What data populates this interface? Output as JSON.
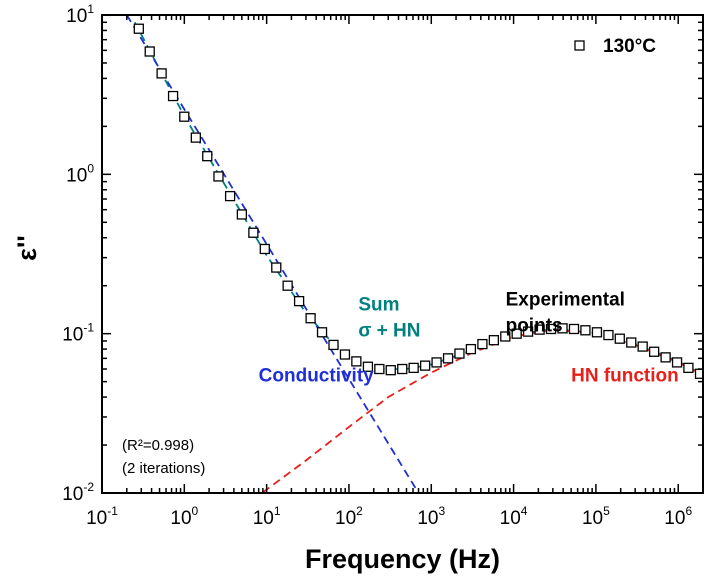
{
  "chart_data": {
    "type": "scatter",
    "title": "",
    "xlabel": "Frequency (Hz)",
    "ylabel": "ε''",
    "xscale": "log",
    "yscale": "log",
    "xlim": [
      0.1,
      2000000
    ],
    "ylim": [
      0.01,
      10
    ],
    "x_ticks": [
      {
        "base": "10",
        "exp": "-1",
        "value": 0.1
      },
      {
        "base": "10",
        "exp": "0",
        "value": 1
      },
      {
        "base": "10",
        "exp": "1",
        "value": 10
      },
      {
        "base": "10",
        "exp": "2",
        "value": 100
      },
      {
        "base": "10",
        "exp": "3",
        "value": 1000
      },
      {
        "base": "10",
        "exp": "4",
        "value": 10000
      },
      {
        "base": "10",
        "exp": "5",
        "value": 100000
      },
      {
        "base": "10",
        "exp": "6",
        "value": 1000000
      }
    ],
    "y_ticks": [
      {
        "base": "10",
        "exp": "-2",
        "value": 0.01
      },
      {
        "base": "10",
        "exp": "-1",
        "value": 0.1
      },
      {
        "base": "10",
        "exp": "0",
        "value": 1
      },
      {
        "base": "10",
        "exp": "1",
        "value": 10
      }
    ],
    "legend": {
      "position": "top-right",
      "label": "130°C",
      "marker": "open-square"
    },
    "series": [
      {
        "name": "130°C",
        "kind": "scatter",
        "marker": "open-square",
        "color": "#000000",
        "fill": "#ffffff",
        "x": [
          0.28,
          0.38,
          0.53,
          0.73,
          1.0,
          1.38,
          1.9,
          2.6,
          3.6,
          5.0,
          6.9,
          9.5,
          13.1,
          18.0,
          24.8,
          34.2,
          47.1,
          64.9,
          89.4,
          123,
          170,
          234,
          322,
          444,
          611,
          842,
          1160,
          1600,
          2200,
          3030,
          4180,
          5760,
          7930,
          10900,
          15000,
          20700,
          28500,
          39300,
          54200,
          74600,
          103000,
          142000,
          195000,
          269000,
          370000,
          510000,
          703000,
          968000,
          1330000,
          1840000
        ],
        "y": [
          8.2,
          5.9,
          4.3,
          3.1,
          2.3,
          1.7,
          1.3,
          0.97,
          0.73,
          0.56,
          0.43,
          0.34,
          0.26,
          0.2,
          0.16,
          0.125,
          0.102,
          0.085,
          0.074,
          0.067,
          0.062,
          0.06,
          0.059,
          0.06,
          0.061,
          0.063,
          0.066,
          0.07,
          0.075,
          0.08,
          0.086,
          0.091,
          0.096,
          0.1,
          0.103,
          0.106,
          0.107,
          0.108,
          0.107,
          0.105,
          0.102,
          0.098,
          0.093,
          0.088,
          0.083,
          0.077,
          0.071,
          0.066,
          0.061,
          0.056
        ]
      },
      {
        "name": "Sum σ + HN",
        "kind": "line",
        "dash": "dashed",
        "color": "#008080",
        "x": [
          0.25,
          1,
          10,
          30,
          60,
          120,
          250,
          500,
          1000,
          3000,
          10000,
          30000,
          100000,
          300000,
          1000000,
          2000000
        ],
        "y": [
          9.0,
          2.32,
          0.31,
          0.135,
          0.09,
          0.068,
          0.06,
          0.06,
          0.064,
          0.078,
          0.098,
          0.107,
          0.101,
          0.086,
          0.067,
          0.055
        ]
      },
      {
        "name": "Conductivity",
        "kind": "line",
        "dash": "dashed",
        "color": "#1f2fd6",
        "x": [
          0.2,
          700
        ],
        "y": [
          10.0,
          0.01
        ]
      },
      {
        "name": "HN function",
        "kind": "line",
        "dash": "dashed",
        "color": "#e8201a",
        "x": [
          9,
          30,
          100,
          300,
          1000,
          3000,
          10000,
          30000,
          100000,
          300000,
          1000000,
          2000000
        ],
        "y": [
          0.0101,
          0.016,
          0.026,
          0.04,
          0.057,
          0.075,
          0.096,
          0.106,
          0.1,
          0.085,
          0.066,
          0.055
        ]
      }
    ],
    "annotations": [
      {
        "id": "experimental",
        "lines": [
          "Experimental",
          "points"
        ],
        "color": "#000000",
        "x": 8000,
        "y": 0.15
      },
      {
        "id": "sum",
        "lines": [
          "Sum",
          "σ + HN"
        ],
        "color": "#008080",
        "x": 130,
        "y": 0.14
      },
      {
        "id": "conductivity",
        "lines": [
          "Conductivity"
        ],
        "color": "#1f2fd6",
        "x": 8,
        "y": 0.05
      },
      {
        "id": "hn",
        "lines": [
          "HN function"
        ],
        "color": "#e8201a",
        "x": 50000,
        "y": 0.05
      }
    ],
    "notes": [
      "(R²=0.998)",
      "(2 iterations)"
    ]
  }
}
